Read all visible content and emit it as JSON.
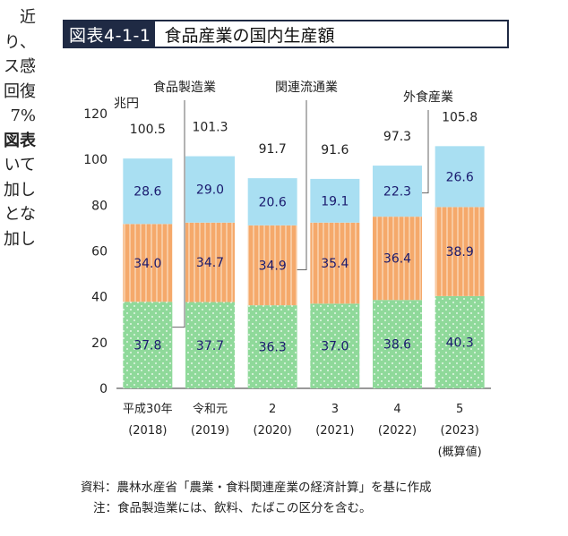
{
  "left_margin_text": [
    "近",
    "り、",
    "ス感",
    "回復",
    "7%",
    "図表",
    "いて",
    "加し",
    "とな",
    "加し"
  ],
  "figure": {
    "label": "図表4-1-1",
    "title": "食品産業の国内生産額"
  },
  "chart_data": {
    "type": "bar",
    "stacked": true,
    "unit_label": "兆円",
    "ylim": [
      0,
      120
    ],
    "yticks": [
      0,
      20,
      40,
      60,
      80,
      100,
      120
    ],
    "categories": [
      {
        "line1": "平成30年",
        "line2": "(2018)",
        "line3": ""
      },
      {
        "line1": "令和元",
        "line2": "(2019)",
        "line3": ""
      },
      {
        "line1": "2",
        "line2": "(2020)",
        "line3": ""
      },
      {
        "line1": "3",
        "line2": "(2021)",
        "line3": ""
      },
      {
        "line1": "4",
        "line2": "(2022)",
        "line3": ""
      },
      {
        "line1": "5",
        "line2": "(2023)",
        "line3": "(概算値)"
      }
    ],
    "series": [
      {
        "name": "食品製造業",
        "values": [
          37.8,
          37.7,
          36.3,
          37.0,
          38.6,
          40.3
        ],
        "labels": [
          "37.8",
          "37.7",
          "36.3",
          "37.0",
          "38.6",
          "40.3"
        ],
        "color": "#8fd99a",
        "pattern": "dots"
      },
      {
        "name": "関連流通業",
        "values": [
          34.0,
          34.7,
          34.9,
          35.4,
          36.4,
          38.9
        ],
        "labels": [
          "34.0",
          "34.7",
          "34.9",
          "35.4",
          "36.4",
          "38.9"
        ],
        "color": "#f5a96b",
        "pattern": "stripes"
      },
      {
        "name": "外食産業",
        "values": [
          28.6,
          29.0,
          20.6,
          19.1,
          22.3,
          26.6
        ],
        "labels": [
          "28.6",
          "29.0",
          "20.6",
          "19.1",
          "22.3",
          "26.6"
        ],
        "color": "#a9dff2",
        "pattern": "solid"
      }
    ],
    "totals": [
      "100.5",
      "101.3",
      "91.7",
      "91.6",
      "97.3",
      "105.8"
    ],
    "colors": {
      "value_text": "#1a1a6e",
      "axis": "#333333",
      "leader": "#666666"
    }
  },
  "notes": [
    "資料：農林水産省「農業・食料関連産業の経済計算」を基に作成",
    "注：食品製造業には、飲料、たばこの区分を含む。"
  ]
}
